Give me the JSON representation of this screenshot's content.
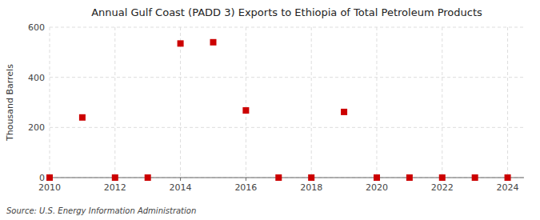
{
  "chart_data": {
    "type": "scatter",
    "title": "Annual Gulf Coast (PADD 3) Exports to Ethiopia of Total Petroleum Products",
    "ylabel": "Thousand Barrels",
    "source": "Source: U.S. Energy Information Administration",
    "x": [
      2010,
      2011,
      2012,
      2013,
      2014,
      2015,
      2016,
      2017,
      2018,
      2019,
      2020,
      2021,
      2022,
      2023,
      2024
    ],
    "values": [
      0,
      240,
      0,
      0,
      535,
      540,
      268,
      0,
      0,
      262,
      0,
      0,
      0,
      0,
      0
    ],
    "color": "#cc0000",
    "marker": "square",
    "xlim": [
      2010,
      2024.5
    ],
    "ylim": [
      0,
      600
    ],
    "xticks": [
      2010,
      2012,
      2014,
      2016,
      2018,
      2020,
      2022,
      2024
    ],
    "yticks": [
      0,
      200,
      400,
      600
    ],
    "grid": true
  }
}
